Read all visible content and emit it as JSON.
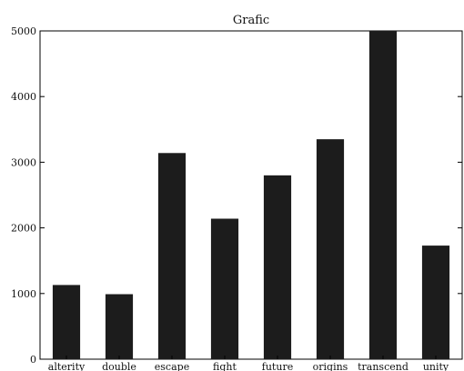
{
  "chart_data": {
    "type": "bar",
    "title": "Grafic",
    "xlabel": "",
    "ylabel": "",
    "categories": [
      "alterity",
      "double",
      "escape",
      "fight",
      "future",
      "origins",
      "transcend",
      "unity"
    ],
    "values": [
      1130,
      990,
      3140,
      2140,
      2800,
      3350,
      5000,
      1730
    ],
    "ylim": [
      0,
      5000
    ],
    "yticks": [
      0,
      1000,
      2000,
      3000,
      4000,
      5000
    ],
    "ytick_labels": [
      "0",
      "1000",
      "2000",
      "3000",
      "4000",
      "5000"
    ],
    "grid": false,
    "bar_color": "#1c1c1c"
  }
}
